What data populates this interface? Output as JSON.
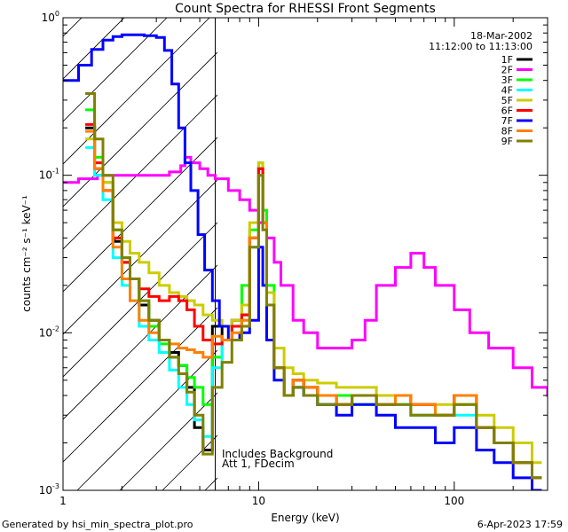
{
  "chart_data": {
    "type": "line",
    "title": "Count Spectra for RHESSI Front Segments",
    "xlabel": "Energy (keV)",
    "ylabel": "counts cm⁻² s⁻¹ keV⁻¹",
    "xscale": "log",
    "yscale": "log",
    "xlim": [
      1,
      300
    ],
    "ylim": [
      0.001,
      1.0
    ],
    "grid": false,
    "legend_position": "top-right",
    "x_ticks": [
      {
        "value": 1,
        "label": "1"
      },
      {
        "value": 10,
        "label": "10"
      },
      {
        "value": 100,
        "label": "100"
      }
    ],
    "y_ticks": [
      {
        "value": 0.001,
        "base": "10",
        "exp": "-3"
      },
      {
        "value": 0.01,
        "base": "10",
        "exp": "-2"
      },
      {
        "value": 0.1,
        "base": "10",
        "exp": "-1"
      },
      {
        "value": 1.0,
        "base": "10",
        "exp": "0"
      }
    ],
    "date_label": "18-Mar-2002",
    "time_range_label": "11:12:00 to 11:13:00",
    "annotations": [
      "Includes Background",
      "Att 1, FDecim"
    ],
    "attenuator_cutoff_energy": 6,
    "series": [
      {
        "name": "1F",
        "color": "#000000",
        "x": [
          1.3,
          1.45,
          1.6,
          1.8,
          2.0,
          2.2,
          2.45,
          2.75,
          3.1,
          3.5,
          3.9,
          4.3,
          4.7,
          5.2,
          5.8,
          6.5,
          7.3,
          8.2,
          9.0,
          10.0,
          10.5,
          11.0,
          12.0,
          13.5,
          15,
          17,
          20,
          25,
          30,
          40,
          50,
          60,
          80,
          100,
          130,
          160,
          200,
          250
        ],
        "y": [
          0.2,
          0.11,
          0.08,
          0.038,
          0.028,
          0.022,
          0.015,
          0.012,
          0.009,
          0.0075,
          0.0062,
          0.0045,
          0.0025,
          0.0018,
          0.011,
          0.009,
          0.012,
          0.013,
          0.04,
          0.11,
          0.05,
          0.015,
          0.006,
          0.004,
          0.005,
          0.0045,
          0.004,
          0.0035,
          0.004,
          0.0035,
          0.004,
          0.0035,
          0.003,
          0.004,
          0.0025,
          0.002,
          0.0015,
          0.0012
        ]
      },
      {
        "name": "2F",
        "color": "#ff00ff",
        "x": [
          1.0,
          1.2,
          1.5,
          2.0,
          2.5,
          3.0,
          3.5,
          4.0,
          4.2,
          4.5,
          5.0,
          5.5,
          6.0,
          7.0,
          8.0,
          9.0,
          10.0,
          11.0,
          12.0,
          13.0,
          15,
          17,
          20,
          25,
          30,
          35,
          40,
          50,
          60,
          70,
          80,
          100,
          120,
          150,
          200,
          250,
          300
        ],
        "y": [
          0.09,
          0.095,
          0.1,
          0.1,
          0.1,
          0.1,
          0.105,
          0.115,
          0.13,
          0.12,
          0.11,
          0.1,
          0.095,
          0.08,
          0.07,
          0.06,
          0.05,
          0.04,
          0.028,
          0.02,
          0.012,
          0.01,
          0.008,
          0.008,
          0.009,
          0.012,
          0.02,
          0.026,
          0.032,
          0.026,
          0.02,
          0.014,
          0.01,
          0.008,
          0.006,
          0.0045,
          0.004
        ]
      },
      {
        "name": "3F",
        "color": "#00ff00",
        "x": [
          1.3,
          1.45,
          1.6,
          1.8,
          2.0,
          2.2,
          2.45,
          2.75,
          3.1,
          3.5,
          3.9,
          4.3,
          4.7,
          5.2,
          5.8,
          6.5,
          7.3,
          8.2,
          9.0,
          10.0,
          10.5,
          11.0,
          12.0,
          13.5,
          15,
          17,
          20,
          25,
          30,
          40,
          50,
          60,
          80,
          100,
          130,
          160,
          200,
          250
        ],
        "y": [
          0.26,
          0.13,
          0.09,
          0.045,
          0.03,
          0.022,
          0.016,
          0.011,
          0.0085,
          0.007,
          0.0062,
          0.0052,
          0.0045,
          0.0035,
          0.007,
          0.009,
          0.011,
          0.02,
          0.045,
          0.12,
          0.06,
          0.02,
          0.006,
          0.004,
          0.0045,
          0.004,
          0.0035,
          0.004,
          0.0035,
          0.004,
          0.0035,
          0.003,
          0.003,
          0.0035,
          0.0025,
          0.002,
          0.0015,
          0.0012
        ]
      },
      {
        "name": "4F",
        "color": "#00ffff",
        "x": [
          1.3,
          1.45,
          1.6,
          1.8,
          2.0,
          2.2,
          2.45,
          2.75,
          3.1,
          3.5,
          3.9,
          4.3,
          4.7,
          5.2,
          5.8,
          6.5,
          7.3,
          8.2,
          9.0,
          10.0,
          10.5,
          11.0,
          12.0,
          13.5,
          15,
          17,
          20,
          25,
          30,
          40,
          50,
          60,
          80,
          100,
          130,
          160,
          200,
          250
        ],
        "y": [
          0.15,
          0.1,
          0.07,
          0.03,
          0.02,
          0.016,
          0.011,
          0.009,
          0.0075,
          0.0058,
          0.0045,
          0.0035,
          0.0028,
          0.0022,
          0.006,
          0.009,
          0.011,
          0.012,
          0.035,
          0.11,
          0.05,
          0.015,
          0.006,
          0.004,
          0.0045,
          0.004,
          0.0035,
          0.0035,
          0.004,
          0.0035,
          0.0035,
          0.003,
          0.003,
          0.003,
          0.0025,
          0.002,
          0.0015,
          0.0012
        ]
      },
      {
        "name": "5F",
        "color": "#cccc00",
        "x": [
          1.3,
          1.45,
          1.6,
          1.8,
          2.0,
          2.2,
          2.45,
          2.75,
          3.1,
          3.5,
          3.9,
          4.3,
          4.7,
          5.2,
          5.8,
          6.5,
          7.3,
          8.2,
          9.0,
          10.0,
          10.5,
          11.0,
          12.0,
          13.5,
          15,
          17,
          20,
          25,
          30,
          40,
          50,
          60,
          80,
          100,
          130,
          160,
          200,
          250
        ],
        "y": [
          0.17,
          0.12,
          0.09,
          0.05,
          0.038,
          0.032,
          0.028,
          0.024,
          0.02,
          0.018,
          0.017,
          0.016,
          0.015,
          0.013,
          0.012,
          0.011,
          0.012,
          0.015,
          0.05,
          0.12,
          0.05,
          0.018,
          0.008,
          0.006,
          0.0055,
          0.005,
          0.0048,
          0.0045,
          0.0045,
          0.004,
          0.004,
          0.0035,
          0.0035,
          0.0035,
          0.003,
          0.0025,
          0.002,
          0.0015
        ]
      },
      {
        "name": "6F",
        "color": "#ff0000",
        "x": [
          1.3,
          1.45,
          1.6,
          1.8,
          2.0,
          2.2,
          2.45,
          2.75,
          3.1,
          3.5,
          3.9,
          4.3,
          4.7,
          5.2,
          5.8,
          6.5,
          7.3,
          8.2,
          9.0,
          10.0,
          10.5,
          11.0,
          12.0,
          13.5,
          15,
          17,
          20,
          25,
          30,
          40,
          50,
          60,
          80,
          100,
          130,
          160,
          200,
          250
        ],
        "y": [
          0.21,
          0.12,
          0.08,
          0.04,
          0.028,
          0.022,
          0.019,
          0.017,
          0.016,
          0.017,
          0.016,
          0.014,
          0.011,
          0.009,
          0.0085,
          0.009,
          0.011,
          0.013,
          0.04,
          0.11,
          0.05,
          0.015,
          0.006,
          0.004,
          0.005,
          0.0045,
          0.004,
          0.0035,
          0.004,
          0.0035,
          0.004,
          0.0035,
          0.003,
          0.004,
          0.0025,
          0.002,
          0.0015,
          0.0012
        ]
      },
      {
        "name": "7F",
        "color": "#0000ff",
        "x": [
          1.0,
          1.2,
          1.4,
          1.6,
          1.8,
          2.0,
          2.3,
          2.6,
          3.0,
          3.3,
          3.6,
          3.9,
          4.2,
          4.5,
          4.9,
          5.3,
          5.8,
          6.3,
          7.0,
          8.0,
          9.0,
          10.0,
          10.5,
          11.0,
          12.0,
          13.5,
          15,
          17,
          20,
          25,
          30,
          40,
          50,
          60,
          80,
          100,
          130,
          160,
          200,
          250
        ],
        "y": [
          0.4,
          0.5,
          0.63,
          0.72,
          0.76,
          0.78,
          0.78,
          0.77,
          0.75,
          0.62,
          0.38,
          0.2,
          0.12,
          0.08,
          0.042,
          0.025,
          0.016,
          0.011,
          0.009,
          0.01,
          0.012,
          0.035,
          0.02,
          0.009,
          0.005,
          0.004,
          0.0045,
          0.004,
          0.0035,
          0.003,
          0.0035,
          0.003,
          0.0025,
          0.0025,
          0.002,
          0.0025,
          0.0018,
          0.0015,
          0.0012,
          0.001
        ]
      },
      {
        "name": "8F",
        "color": "#ff8000",
        "x": [
          1.3,
          1.45,
          1.6,
          1.8,
          2.0,
          2.2,
          2.45,
          2.75,
          3.1,
          3.5,
          3.9,
          4.3,
          4.7,
          5.2,
          5.8,
          6.5,
          7.3,
          8.2,
          9.0,
          10.0,
          10.5,
          11.0,
          12.0,
          13.5,
          15,
          17,
          20,
          25,
          30,
          40,
          50,
          60,
          80,
          100,
          130,
          160,
          200,
          250
        ],
        "y": [
          0.19,
          0.11,
          0.08,
          0.035,
          0.022,
          0.016,
          0.012,
          0.01,
          0.009,
          0.0085,
          0.008,
          0.0078,
          0.0075,
          0.007,
          0.0095,
          0.009,
          0.01,
          0.012,
          0.04,
          0.1,
          0.05,
          0.015,
          0.006,
          0.004,
          0.005,
          0.0045,
          0.004,
          0.0035,
          0.004,
          0.0035,
          0.004,
          0.0035,
          0.003,
          0.004,
          0.0025,
          0.002,
          0.0015,
          0.0012
        ]
      },
      {
        "name": "9F",
        "color": "#808000",
        "x": [
          1.3,
          1.45,
          1.6,
          1.8,
          2.0,
          2.2,
          2.45,
          2.75,
          3.1,
          3.5,
          3.9,
          4.3,
          4.7,
          5.2,
          5.8,
          6.5,
          7.3,
          8.2,
          9.0,
          10.0,
          10.5,
          11.0,
          12.0,
          13.5,
          15,
          17,
          20,
          25,
          30,
          40,
          50,
          60,
          80,
          100,
          130,
          160,
          200,
          250
        ],
        "y": [
          0.33,
          0.17,
          0.1,
          0.045,
          0.03,
          0.022,
          0.016,
          0.012,
          0.009,
          0.007,
          0.0055,
          0.0042,
          0.003,
          0.0017,
          0.0045,
          0.0065,
          0.009,
          0.011,
          0.035,
          0.1,
          0.045,
          0.015,
          0.006,
          0.004,
          0.0045,
          0.004,
          0.0035,
          0.0035,
          0.004,
          0.0035,
          0.0035,
          0.003,
          0.003,
          0.0035,
          0.0025,
          0.002,
          0.0015,
          0.0012
        ]
      }
    ]
  },
  "footer": {
    "generator": "Generated by hsi_min_spectra_plot.pro",
    "timestamp": "6-Apr-2023 17:59"
  }
}
